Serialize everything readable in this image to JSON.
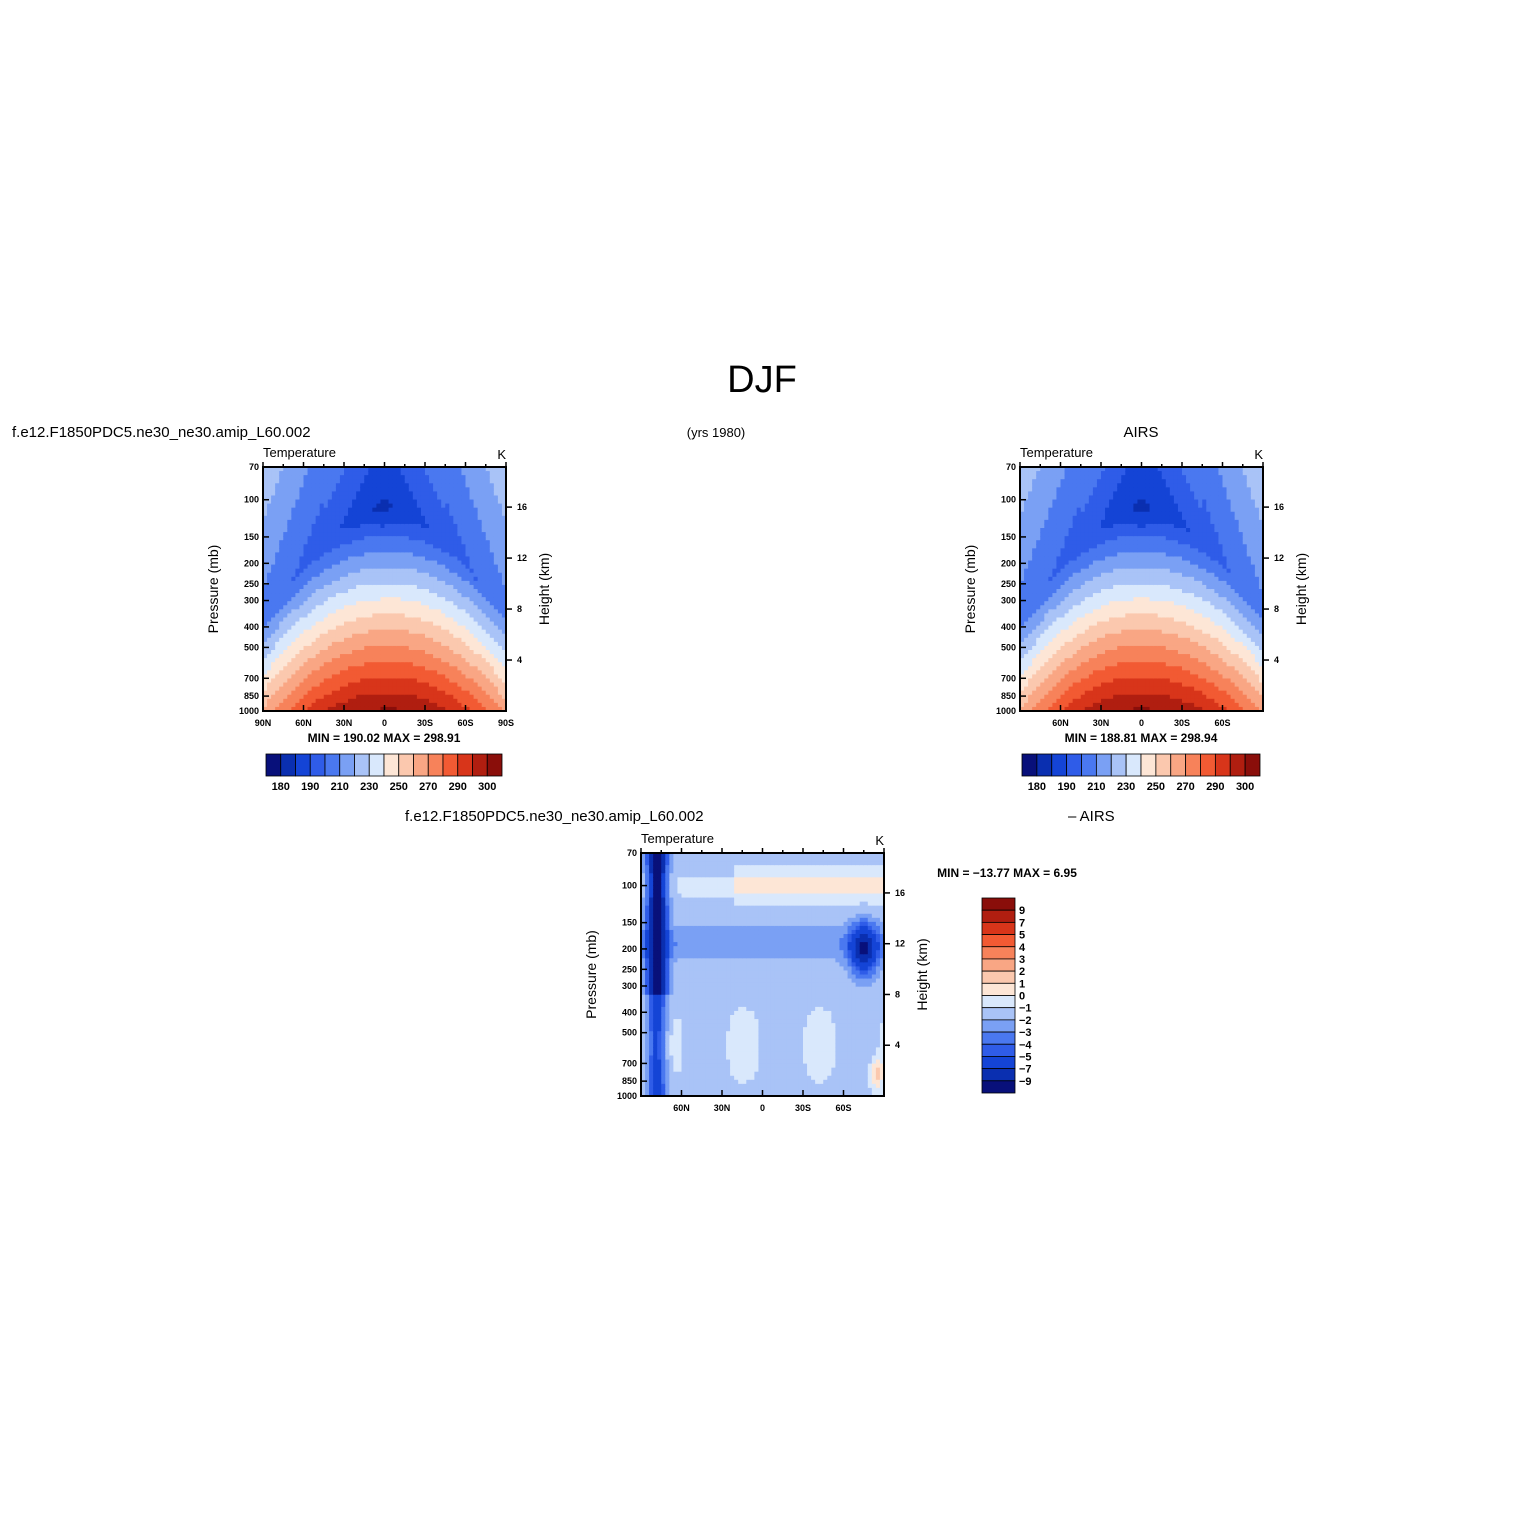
{
  "page": {
    "title": "DJF",
    "subtitle": "(yrs 1980)"
  },
  "chart_data": [
    {
      "id": "model",
      "type": "contour",
      "header": "f.e12.F1850PDC5.ne30_ne30.amip_L60.002",
      "variable_label": "Temperature",
      "units_label": "K",
      "ylabel": "Pressure (mb)",
      "ylabel_right": "Height (km)",
      "x_ticks": [
        "90N",
        "60N",
        "30N",
        "0",
        "30S",
        "60S",
        "90S"
      ],
      "x_tick_values": [
        90,
        60,
        30,
        0,
        -30,
        -60,
        -90
      ],
      "y_ticks": [
        70,
        100,
        150,
        200,
        250,
        300,
        400,
        500,
        700,
        850,
        1000
      ],
      "y_right_ticks": [
        16,
        12,
        8,
        4
      ],
      "ylim": [
        1000,
        70
      ],
      "xlim": [
        90,
        -90
      ],
      "stats_text": "MIN = 190.02   MAX = 298.91",
      "min": 190.02,
      "max": 298.91,
      "colorbar": {
        "orientation": "horizontal",
        "labels": [
          "180",
          "190",
          "210",
          "230",
          "250",
          "270",
          "290",
          "300"
        ],
        "colors": [
          "#08107a",
          "#0a2fb0",
          "#1444d6",
          "#2f5ce8",
          "#4a78f0",
          "#7aa0f4",
          "#a9c3f7",
          "#d9e8fc",
          "#fde6d6",
          "#fbc8ae",
          "#f9a684",
          "#f7825a",
          "#f25a33",
          "#d8351a",
          "#b01e10",
          "#8a0e0a"
        ]
      }
    },
    {
      "id": "obs",
      "type": "contour",
      "header": "AIRS",
      "variable_label": "Temperature",
      "units_label": "K",
      "ylabel": "Pressure (mb)",
      "ylabel_right": "Height (km)",
      "x_ticks": [
        "60N",
        "30N",
        "0",
        "30S",
        "60S"
      ],
      "x_tick_values": [
        60,
        30,
        0,
        -30,
        -60
      ],
      "y_ticks": [
        70,
        100,
        150,
        200,
        250,
        300,
        400,
        500,
        700,
        850,
        1000
      ],
      "y_right_ticks": [
        16,
        12,
        8,
        4
      ],
      "ylim": [
        1000,
        70
      ],
      "xlim": [
        90,
        -90
      ],
      "stats_text": "MIN = 188.81   MAX = 298.94",
      "min": 188.81,
      "max": 298.94,
      "colorbar": {
        "orientation": "horizontal",
        "labels": [
          "180",
          "190",
          "210",
          "230",
          "250",
          "270",
          "290",
          "300"
        ],
        "colors": [
          "#08107a",
          "#0a2fb0",
          "#1444d6",
          "#2f5ce8",
          "#4a78f0",
          "#7aa0f4",
          "#a9c3f7",
          "#d9e8fc",
          "#fde6d6",
          "#fbc8ae",
          "#f9a684",
          "#f7825a",
          "#f25a33",
          "#d8351a",
          "#b01e10",
          "#8a0e0a"
        ]
      }
    },
    {
      "id": "diff",
      "type": "contour",
      "header_left": "f.e12.F1850PDC5.ne30_ne30.amip_L60.002",
      "header_right": "– AIRS",
      "variable_label": "Temperature",
      "units_label": "K",
      "ylabel": "Pressure (mb)",
      "ylabel_right": "Height (km)",
      "x_ticks": [
        "60N",
        "30N",
        "0",
        "30S",
        "60S"
      ],
      "x_tick_values": [
        60,
        30,
        0,
        -30,
        -60
      ],
      "y_ticks": [
        70,
        100,
        150,
        200,
        250,
        300,
        400,
        500,
        700,
        850,
        1000
      ],
      "y_right_ticks": [
        16,
        12,
        8,
        4
      ],
      "ylim": [
        1000,
        70
      ],
      "xlim": [
        90,
        -90
      ],
      "stats_text": "MIN = −13.77   MAX =    6.95",
      "min": -13.77,
      "max": 6.95,
      "colorbar": {
        "orientation": "vertical",
        "labels": [
          "9",
          "7",
          "5",
          "4",
          "3",
          "2",
          "1",
          "0",
          "−1",
          "−2",
          "−3",
          "−4",
          "−5",
          "−7",
          "−9"
        ],
        "colors": [
          "#8a0e0a",
          "#b01e10",
          "#d8351a",
          "#f25a33",
          "#f7825a",
          "#f9a684",
          "#fbc8ae",
          "#fde6d6",
          "#d9e8fc",
          "#a9c3f7",
          "#7aa0f4",
          "#4a78f0",
          "#2f5ce8",
          "#1444d6",
          "#0a2fb0",
          "#08107a"
        ]
      }
    }
  ]
}
